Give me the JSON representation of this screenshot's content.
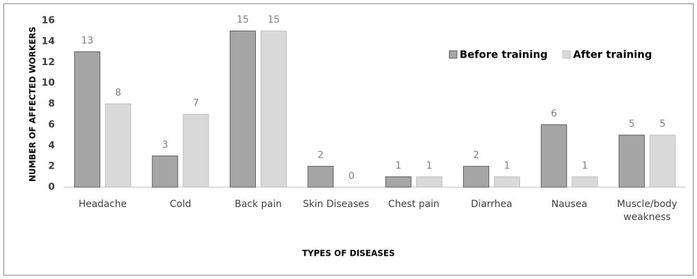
{
  "chart_data": {
    "type": "bar",
    "xlabel": "TYPES OF DISEASES",
    "ylabel": "NUMBER OF AFFECTED WORKERS",
    "categories": [
      "Headache",
      "Cold",
      "Back pain",
      "Skin Diseases",
      "Chest pain",
      "Diarrhea",
      "Nausea",
      "Muscle/body weakness"
    ],
    "series": [
      {
        "name": "Before training",
        "color": "#a6a6a6",
        "values": [
          13,
          3,
          15,
          2,
          1,
          2,
          6,
          5
        ]
      },
      {
        "name": "After training",
        "color": "#d9d9d9",
        "values": [
          8,
          7,
          15,
          0,
          1,
          1,
          1,
          5
        ]
      }
    ],
    "ylim": [
      0,
      16
    ],
    "yticks": [
      0,
      2,
      4,
      6,
      8,
      10,
      12,
      14,
      16
    ],
    "grid": false,
    "legend": "upper right"
  }
}
